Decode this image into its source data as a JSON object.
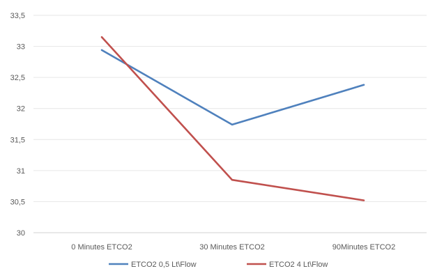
{
  "chart_data": {
    "type": "line",
    "categories": [
      "0 Minutes ETCO2",
      "30 Minutes ETCO2",
      "90Minutes ETCO2"
    ],
    "series": [
      {
        "name": "ETCO2  0,5 Lt\\Flow",
        "color": "#4f81bd",
        "values": [
          32.94,
          31.74,
          32.38
        ]
      },
      {
        "name": "ETCO2  4 Lt\\Flow",
        "color": "#c0504d",
        "values": [
          33.15,
          30.85,
          30.52
        ]
      }
    ],
    "y_ticks": [
      "30",
      "30,5",
      "31",
      "31,5",
      "32",
      "32,5",
      "33",
      "33,5"
    ],
    "ylim": [
      30,
      33.5
    ],
    "grid": true,
    "legend_position": "bottom"
  }
}
